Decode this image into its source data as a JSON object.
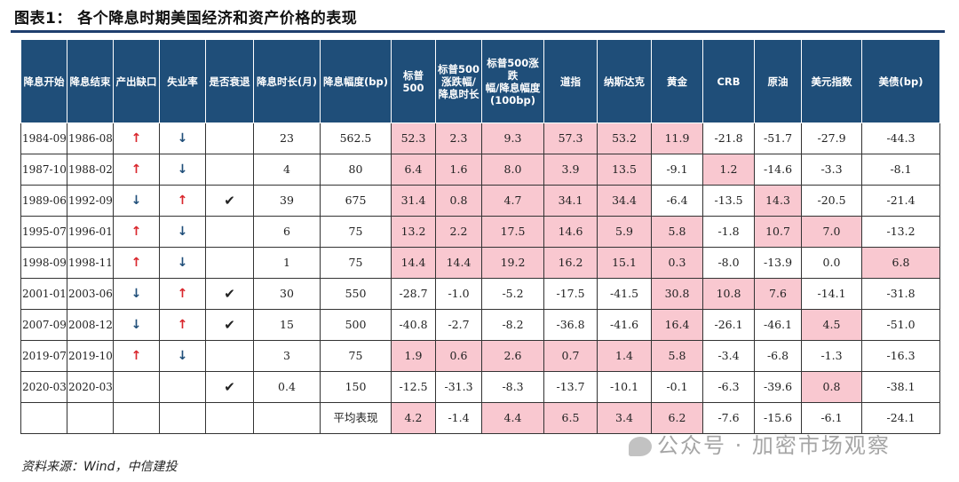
{
  "title": "图表1：  各个降息时期美国经济和资产价格的表现",
  "headers": [
    "降息开始",
    "降息结束",
    "产出缺口",
    "失业率",
    "是否衰退",
    "降息时长(月)",
    "降息幅度(bp)",
    "标普500",
    "标普500\n涨跌幅/\n降息时长",
    "标普500涨跌\n幅/降息幅度\n(100bp)",
    "道指",
    "纳斯达克",
    "黄金",
    "CRB",
    "原油",
    "美元指数",
    "美债(bp)"
  ],
  "rows": [
    [
      "1984-09",
      "1986-08",
      "↑",
      "↓",
      "",
      "23",
      "562.5",
      "52.3",
      "2.3",
      "9.3",
      "57.3",
      "53.2",
      "11.9",
      "-21.8",
      "-51.7",
      "-27.9",
      "-44.3"
    ],
    [
      "1987-10",
      "1988-02",
      "↑",
      "↓",
      "",
      "4",
      "80",
      "6.4",
      "1.6",
      "8.0",
      "3.9",
      "13.5",
      "-9.1",
      "1.2",
      "-14.6",
      "-3.3",
      "-8.1"
    ],
    [
      "1989-06",
      "1992-09",
      "↓",
      "↑",
      "✔",
      "39",
      "675",
      "31.4",
      "0.8",
      "4.7",
      "34.1",
      "34.4",
      "-6.4",
      "-13.5",
      "14.3",
      "-20.5",
      "-21.4"
    ],
    [
      "1995-07",
      "1996-01",
      "↑",
      "↓",
      "",
      "6",
      "75",
      "13.2",
      "2.2",
      "17.5",
      "14.6",
      "5.9",
      "5.8",
      "-1.8",
      "10.7",
      "7.0",
      "-13.2"
    ],
    [
      "1998-09",
      "1998-11",
      "↑",
      "↓",
      "",
      "1",
      "75",
      "14.4",
      "14.4",
      "19.2",
      "16.2",
      "15.1",
      "0.3",
      "-8.0",
      "-13.9",
      "0.0",
      "6.8"
    ],
    [
      "2001-01",
      "2003-06",
      "↓",
      "↑",
      "✔",
      "30",
      "550",
      "-28.7",
      "-1.0",
      "-5.2",
      "-17.5",
      "-41.5",
      "30.8",
      "10.8",
      "7.6",
      "-14.1",
      "-31.8"
    ],
    [
      "2007-09",
      "2008-12",
      "↓",
      "↑",
      "✔",
      "15",
      "500",
      "-40.8",
      "-2.7",
      "-8.2",
      "-36.8",
      "-41.6",
      "16.4",
      "-26.1",
      "-46.1",
      "4.5",
      "-51.0"
    ],
    [
      "2019-07",
      "2019-10",
      "↑",
      "↓",
      "",
      "3",
      "75",
      "1.9",
      "0.6",
      "2.6",
      "0.7",
      "1.4",
      "5.8",
      "-3.4",
      "-6.8",
      "-1.3",
      "-16.3"
    ],
    [
      "2020-03",
      "2020-03",
      "",
      "",
      "✔",
      "0.4",
      "150",
      "-12.5",
      "-31.3",
      "-8.3",
      "-13.7",
      "-10.1",
      "-0.1",
      "-6.3",
      "-39.6",
      "0.8",
      "-38.1"
    ],
    [
      "",
      "",
      "",
      "",
      "",
      "",
      "平均表现",
      "4.2",
      "-1.4",
      "4.4",
      "6.5",
      "3.4",
      "6.2",
      "-7.6",
      "-15.6",
      "-6.1",
      "-24.1"
    ]
  ],
  "highlights": [
    [
      7,
      8,
      9,
      10,
      11,
      12
    ],
    [
      7,
      8,
      9,
      10,
      11,
      13
    ],
    [
      7,
      8,
      9,
      10,
      11,
      14
    ],
    [
      7,
      8,
      9,
      10,
      11,
      12,
      14,
      15
    ],
    [
      7,
      8,
      9,
      10,
      11,
      12,
      16
    ],
    [
      12,
      13,
      14
    ],
    [
      12,
      15
    ],
    [
      7,
      8,
      9,
      10,
      11,
      12
    ],
    [
      15
    ],
    [
      7,
      9,
      10,
      11,
      12
    ]
  ],
  "colors": {
    "header_bg": "#1f4e79",
    "highlight": "#f9c8d0",
    "up_arrow": "#d9262c",
    "down_arrow": "#1f4e79"
  },
  "source": "资料来源：Wind，中信建投",
  "watermark": "公众号 · 加密市场观察"
}
